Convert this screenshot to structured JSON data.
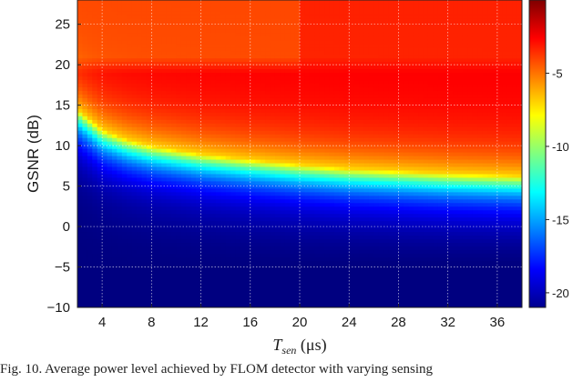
{
  "chart_data": {
    "type": "heatmap",
    "xlabel": "T_sen (μs)",
    "xlabel_main": "T",
    "xlabel_sub": "sen",
    "xlabel_units": " (μs)",
    "ylabel": "GSNR (dB)",
    "x_range": [
      2,
      38
    ],
    "y_range": [
      -10,
      28
    ],
    "x_ticks": [
      4,
      8,
      12,
      16,
      20,
      24,
      28,
      32,
      36
    ],
    "y_ticks": [
      -10,
      -5,
      0,
      5,
      10,
      15,
      20,
      25
    ],
    "colorbar": {
      "range": [
        -21,
        0
      ],
      "ticks": [
        -5,
        -10,
        -15,
        -20
      ],
      "colormap": "jet"
    },
    "grid": true,
    "z_description": "level transitions near GSNR ≈ 14 dB at T_sen=2 μs, falling to ≈ 6 dB at T_sen=38 μs",
    "transition_x": [
      2,
      4,
      6,
      8,
      12,
      16,
      20,
      24,
      28,
      32,
      36,
      38
    ],
    "transition_y": [
      14.5,
      12.0,
      10.8,
      10.0,
      9.0,
      8.3,
      7.7,
      7.2,
      6.9,
      6.6,
      6.4,
      6.3
    ]
  },
  "caption": "Fig. 10.    Average power level achieved by FLOM detector with varying sensing"
}
